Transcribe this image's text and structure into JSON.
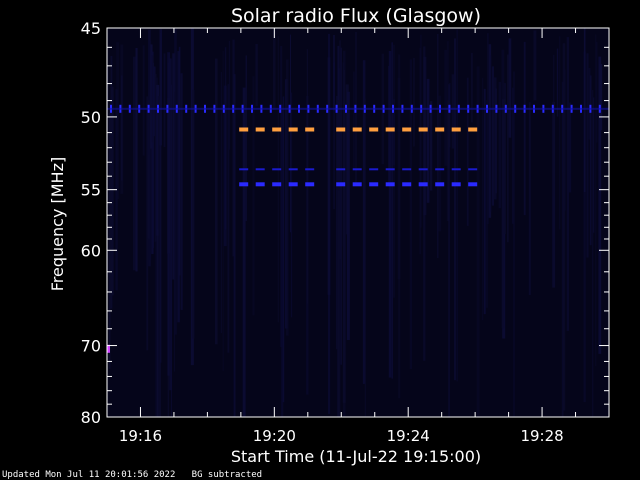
{
  "chart_data": {
    "type": "heatmap",
    "title": "Solar radio Flux (Glasgow)",
    "xlabel": "Start Time (11-Jul-22 19:15:00)",
    "ylabel": "Frequency [MHz]",
    "x_unit": "minutes after 19:15:00",
    "xlim": [
      0,
      15
    ],
    "ylim": [
      80,
      45
    ],
    "x_ticks": [
      {
        "value": 1,
        "label": "19:16"
      },
      {
        "value": 5,
        "label": "19:20"
      },
      {
        "value": 9,
        "label": "19:24"
      },
      {
        "value": 13,
        "label": "19:28"
      }
    ],
    "y_ticks": [
      {
        "value": 45,
        "label": "45"
      },
      {
        "value": 50,
        "label": "50"
      },
      {
        "value": 55,
        "label": "55"
      },
      {
        "value": 60,
        "label": "60"
      },
      {
        "value": 70,
        "label": "70"
      },
      {
        "value": 80,
        "label": "80"
      }
    ],
    "features": [
      {
        "freq": 49.5,
        "start": 0,
        "end": 15,
        "color": "#2a2aff",
        "style": "ticks"
      },
      {
        "freq": 50.8,
        "start": 3.95,
        "end": 6.1,
        "color": "#ff9f3f",
        "style": "dashes"
      },
      {
        "freq": 50.8,
        "start": 6.85,
        "end": 11.2,
        "color": "#ff9f3f",
        "style": "dashes"
      },
      {
        "freq": 53.5,
        "start": 3.95,
        "end": 6.1,
        "color": "#1a1ad0",
        "style": "thin-dashes"
      },
      {
        "freq": 53.5,
        "start": 6.85,
        "end": 11.2,
        "color": "#1a1ad0",
        "style": "thin-dashes"
      },
      {
        "freq": 54.6,
        "start": 3.95,
        "end": 6.1,
        "color": "#2a2aff",
        "style": "dashes"
      },
      {
        "freq": 54.6,
        "start": 6.85,
        "end": 11.2,
        "color": "#2a2aff",
        "style": "dashes"
      },
      {
        "freq": 70.4,
        "start": 0,
        "end": 0.1,
        "color": "#d040ff",
        "style": "spot"
      }
    ],
    "colors": {
      "background": "#000000",
      "plot_bg": "#05051a",
      "axis": "#ffffff"
    }
  },
  "footer": {
    "updated": "Updated Mon Jul 11 20:01:56 2022",
    "note": "BG subtracted"
  }
}
